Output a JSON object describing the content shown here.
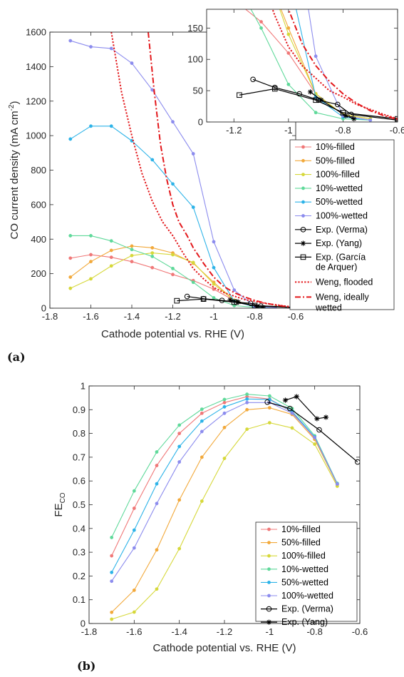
{
  "colors": {
    "10%-filled": "#F07878",
    "50%-filled": "#F2A93B",
    "100%-filled": "#D6D83A",
    "10%-wetted": "#5FD99A",
    "50%-wetted": "#2DB3E8",
    "100%-wetted": "#8C8CEE",
    "exp": "#000000",
    "weng": "#E3171B"
  },
  "chart_data": [
    {
      "panel": "(a)",
      "type": "line",
      "title": "",
      "xlabel": "Cathode potential vs. RHE (V)",
      "ylabel_main": "CO current density (mA cm",
      "ylabel_sup": "-2",
      "ylabel_end": ")",
      "xlim": [
        -1.8,
        -0.6
      ],
      "ylim": [
        0,
        1600
      ],
      "xticks": [
        "-1.8",
        "-1.6",
        "-1.4",
        "-1.2",
        "-1",
        "-0.8",
        "-0.6"
      ],
      "yticks": [
        "0",
        "200",
        "400",
        "600",
        "800",
        "1000",
        "1200",
        "1400",
        "1600"
      ],
      "series": [
        {
          "name": "10%-filled",
          "x": [
            -1.7,
            -1.6,
            -1.5,
            -1.4,
            -1.3,
            -1.2,
            -1.1,
            -1.0,
            -0.9,
            -0.8,
            -0.7
          ],
          "y": [
            290,
            310,
            295,
            270,
            235,
            195,
            160,
            110,
            45,
            12,
            5
          ]
        },
        {
          "name": "50%-filled",
          "x": [
            -1.7,
            -1.6,
            -1.5,
            -1.4,
            -1.3,
            -1.2,
            -1.1,
            -1.0,
            -0.9,
            -0.8,
            -0.7
          ],
          "y": [
            180,
            270,
            335,
            360,
            350,
            320,
            260,
            150,
            45,
            12,
            5
          ]
        },
        {
          "name": "100%-filled",
          "x": [
            -1.7,
            -1.6,
            -1.5,
            -1.4,
            -1.3,
            -1.2,
            -1.1,
            -1.0,
            -0.9,
            -0.8,
            -0.7
          ],
          "y": [
            115,
            170,
            245,
            305,
            320,
            310,
            265,
            140,
            45,
            12,
            5
          ]
        },
        {
          "name": "10%-wetted",
          "x": [
            -1.7,
            -1.6,
            -1.5,
            -1.4,
            -1.3,
            -1.2,
            -1.1,
            -1.0,
            -0.9,
            -0.8,
            -0.7
          ],
          "y": [
            420,
            420,
            390,
            340,
            300,
            230,
            150,
            60,
            15,
            5,
            3
          ]
        },
        {
          "name": "50%-wetted",
          "x": [
            -1.7,
            -1.6,
            -1.5,
            -1.4,
            -1.3,
            -1.2,
            -1.1,
            -1.0,
            -0.9,
            -0.8,
            -0.7
          ],
          "y": [
            980,
            1055,
            1055,
            970,
            860,
            720,
            585,
            235,
            40,
            8,
            3
          ]
        },
        {
          "name": "100%-wetted",
          "x": [
            -1.7,
            -1.6,
            -1.5,
            -1.4,
            -1.3,
            -1.2,
            -1.1,
            -1.0,
            -0.9,
            -0.8,
            -0.7
          ],
          "y": [
            1550,
            1515,
            1505,
            1420,
            1265,
            1080,
            895,
            385,
            105,
            10,
            3
          ]
        },
        {
          "name": "Exp. (Verma)",
          "x": [
            -1.13,
            -1.05,
            -0.96,
            -0.89,
            -0.82,
            -0.77,
            -0.6
          ],
          "y": [
            68,
            55,
            45,
            35,
            28,
            12,
            3
          ]
        },
        {
          "name": "Exp. (Yang)",
          "x": [
            -0.92,
            -0.88,
            -0.79,
            -0.76
          ],
          "y": [
            48,
            35,
            10,
            5
          ]
        },
        {
          "name": "Exp. (García de Arquer)",
          "x": [
            -1.18,
            -1.05,
            -0.9,
            -0.8,
            -0.6
          ],
          "y": [
            43,
            53,
            35,
            15,
            5
          ]
        },
        {
          "name": "Weng, flooded",
          "x": [
            -1.5,
            -1.45,
            -1.4,
            -1.35,
            -1.3,
            -1.25,
            -1.2,
            -1.15,
            -1.1,
            -1.05,
            -1.0,
            -0.95,
            -0.9,
            -0.85,
            -0.8,
            -0.75,
            -0.7,
            -0.65,
            -0.6
          ],
          "y": [
            1600,
            1250,
            1000,
            780,
            620,
            500,
            420,
            320,
            230,
            170,
            120,
            90,
            70,
            50,
            40,
            28,
            20,
            12,
            5
          ]
        },
        {
          "name": "Weng, ideally wetted",
          "x": [
            -1.32,
            -1.29,
            -1.26,
            -1.23,
            -1.2,
            -1.17,
            -1.13,
            -1.1,
            -1.05,
            -1.0,
            -0.95,
            -0.9,
            -0.85,
            -0.8,
            -0.75,
            -0.7,
            -0.65,
            -0.6
          ],
          "y": [
            1600,
            1250,
            950,
            750,
            600,
            500,
            420,
            350,
            260,
            180,
            125,
            90,
            65,
            45,
            30,
            18,
            10,
            4
          ]
        }
      ],
      "legend": {
        "placement": "right",
        "labels": [
          "10%-filled",
          "50%-filled",
          "100%-filled",
          "10%-wetted",
          "50%-wetted",
          "100%-wetted",
          "Exp. (Verma)",
          "Exp. (Yang)",
          "Exp. (García",
          "de Arquer)",
          "Weng, flooded",
          "Weng, ideally",
          "wetted"
        ]
      },
      "inset": {
        "xlim": [
          -1.3,
          -0.6
        ],
        "ylim": [
          0,
          180
        ],
        "xticks": [
          "-1.2",
          "-1",
          "-0.8",
          "-0.6"
        ],
        "yticks": [
          "0",
          "50",
          "100",
          "150"
        ]
      }
    },
    {
      "panel": "(b)",
      "type": "line",
      "title": "",
      "xlabel": "Cathode potential vs. RHE (V)",
      "ylabel_main": "FE",
      "ylabel_sub": "CO",
      "xlim": [
        -1.8,
        -0.6
      ],
      "ylim": [
        0,
        1.0
      ],
      "xticks": [
        "-1.8",
        "-1.6",
        "-1.4",
        "-1.2",
        "-1",
        "-0.8",
        "-0.6"
      ],
      "yticks": [
        "0",
        "0.1",
        "0.2",
        "0.3",
        "0.4",
        "0.5",
        "0.6",
        "0.7",
        "0.8",
        "0.9",
        "1"
      ],
      "series": [
        {
          "name": "10%-filled",
          "x": [
            -1.7,
            -1.6,
            -1.5,
            -1.4,
            -1.3,
            -1.2,
            -1.1,
            -1.0,
            -0.9,
            -0.8,
            -0.7
          ],
          "y": [
            0.285,
            0.485,
            0.665,
            0.8,
            0.885,
            0.93,
            0.955,
            0.945,
            0.89,
            0.78,
            0.585
          ]
        },
        {
          "name": "50%-filled",
          "x": [
            -1.7,
            -1.6,
            -1.5,
            -1.4,
            -1.3,
            -1.2,
            -1.1,
            -1.0,
            -0.9,
            -0.8,
            -0.7
          ],
          "y": [
            0.047,
            0.14,
            0.31,
            0.52,
            0.7,
            0.825,
            0.9,
            0.908,
            0.88,
            0.775,
            0.585
          ]
        },
        {
          "name": "100%-filled",
          "x": [
            -1.7,
            -1.6,
            -1.5,
            -1.4,
            -1.3,
            -1.2,
            -1.1,
            -1.0,
            -0.9,
            -0.8,
            -0.7
          ],
          "y": [
            0.018,
            0.048,
            0.145,
            0.315,
            0.515,
            0.695,
            0.818,
            0.845,
            0.823,
            0.755,
            0.578
          ]
        },
        {
          "name": "10%-wetted",
          "x": [
            -1.7,
            -1.6,
            -1.5,
            -1.4,
            -1.3,
            -1.2,
            -1.1,
            -1.0,
            -0.9,
            -0.8,
            -0.7
          ],
          "y": [
            0.362,
            0.558,
            0.722,
            0.835,
            0.902,
            0.943,
            0.965,
            0.958,
            0.905,
            0.79,
            0.59
          ]
        },
        {
          "name": "50%-wetted",
          "x": [
            -1.7,
            -1.6,
            -1.5,
            -1.4,
            -1.3,
            -1.2,
            -1.1,
            -1.0,
            -0.9,
            -0.8,
            -0.7
          ],
          "y": [
            0.215,
            0.393,
            0.588,
            0.745,
            0.852,
            0.912,
            0.945,
            0.943,
            0.893,
            0.785,
            0.588
          ]
        },
        {
          "name": "100%-wetted",
          "x": [
            -1.7,
            -1.6,
            -1.5,
            -1.4,
            -1.3,
            -1.2,
            -1.1,
            -1.0,
            -0.9,
            -0.8,
            -0.7
          ],
          "y": [
            0.178,
            0.318,
            0.505,
            0.68,
            0.808,
            0.885,
            0.93,
            0.93,
            0.885,
            0.783,
            0.587
          ]
        },
        {
          "name": "Exp. (Verma)",
          "x": [
            -1.01,
            -0.91,
            -0.78,
            -0.61
          ],
          "y": [
            0.932,
            0.905,
            0.815,
            0.68
          ]
        },
        {
          "name": "Exp. (Yang)",
          "x": [
            -0.93,
            -0.88,
            -0.79,
            -0.75
          ],
          "y": [
            0.94,
            0.955,
            0.862,
            0.868
          ]
        }
      ],
      "legend": {
        "placement": "bottom-right",
        "labels": [
          "10%-filled",
          "50%-filled",
          "100%-filled",
          "10%-wetted",
          "50%-wetted",
          "100%-wetted",
          "Exp. (Verma)",
          "Exp. (Yang)"
        ]
      }
    }
  ]
}
